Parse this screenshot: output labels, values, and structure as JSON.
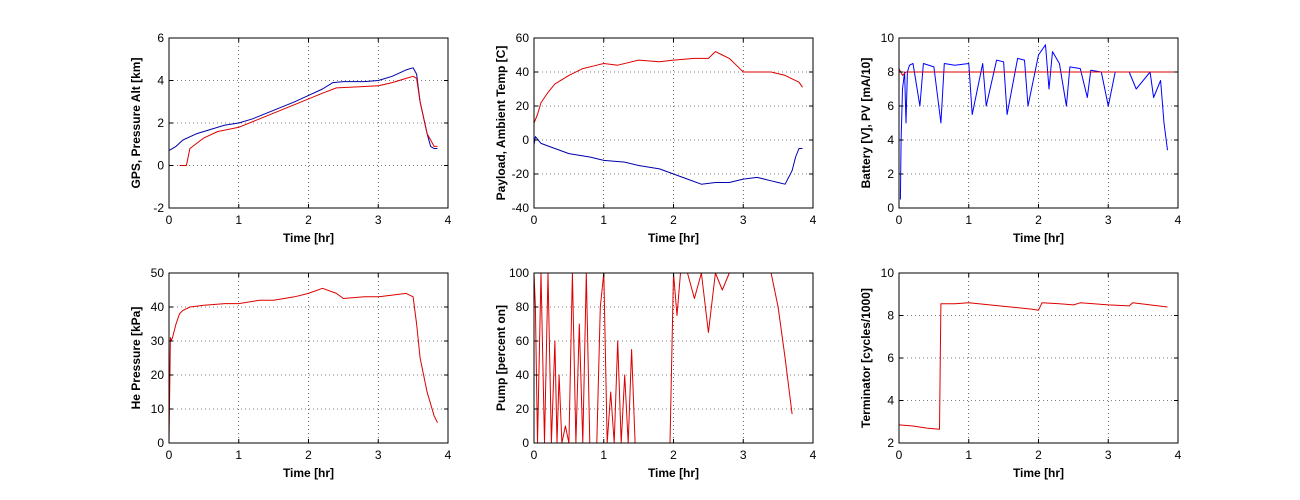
{
  "chart_data": [
    {
      "type": "line",
      "xlabel": "Time [hr]",
      "ylabel": "GPS, Pressure Alt [km]",
      "xlim": [
        0,
        4
      ],
      "ylim": [
        -2,
        6
      ],
      "xticks": [
        0,
        1,
        2,
        3,
        4
      ],
      "yticks": [
        -2,
        0,
        2,
        4,
        6
      ],
      "grid": true,
      "series": [
        {
          "color": "#0000aa",
          "x": [
            0,
            0.1,
            0.2,
            0.4,
            0.6,
            0.8,
            1.0,
            1.2,
            1.5,
            1.8,
            2.0,
            2.2,
            2.35,
            2.5,
            2.8,
            3.0,
            3.2,
            3.4,
            3.5,
            3.55,
            3.6,
            3.7,
            3.75,
            3.8,
            3.85
          ],
          "y": [
            0.7,
            0.9,
            1.2,
            1.5,
            1.7,
            1.9,
            2.0,
            2.2,
            2.6,
            3.0,
            3.3,
            3.6,
            3.9,
            3.95,
            3.95,
            4.0,
            4.2,
            4.5,
            4.6,
            4.3,
            3.0,
            1.5,
            0.9,
            0.8,
            0.8
          ]
        },
        {
          "color": "#dd0000",
          "x": [
            0.15,
            0.25,
            0.3,
            0.5,
            0.7,
            1.0,
            1.3,
            1.6,
            1.9,
            2.2,
            2.4,
            2.7,
            3.0,
            3.2,
            3.4,
            3.5,
            3.55,
            3.6,
            3.7,
            3.8,
            3.85
          ],
          "y": [
            0,
            0,
            0.8,
            1.3,
            1.6,
            1.8,
            2.2,
            2.6,
            3.0,
            3.4,
            3.65,
            3.7,
            3.75,
            3.9,
            4.1,
            4.2,
            4.1,
            3.0,
            1.5,
            0.9,
            0.9
          ]
        }
      ]
    },
    {
      "type": "line",
      "xlabel": "Time [hr]",
      "ylabel": "Payload, Ambient Temp [C]",
      "xlim": [
        0,
        4
      ],
      "ylim": [
        -40,
        60
      ],
      "xticks": [
        0,
        1,
        2,
        3,
        4
      ],
      "yticks": [
        -40,
        -20,
        0,
        20,
        40,
        60
      ],
      "grid": true,
      "series": [
        {
          "color": "#dd0000",
          "x": [
            0,
            0.05,
            0.1,
            0.2,
            0.3,
            0.5,
            0.7,
            0.9,
            1.0,
            1.2,
            1.5,
            1.8,
            2.0,
            2.3,
            2.5,
            2.6,
            2.7,
            2.8,
            2.9,
            3.0,
            3.2,
            3.4,
            3.6,
            3.8,
            3.85
          ],
          "y": [
            10,
            15,
            22,
            28,
            33,
            38,
            42,
            44,
            45,
            44,
            47,
            46,
            47,
            48,
            48,
            52,
            50,
            48,
            44,
            40,
            40,
            40,
            38,
            34,
            31
          ]
        },
        {
          "color": "#0000aa",
          "x": [
            0,
            0.02,
            0.1,
            0.3,
            0.5,
            0.8,
            1.0,
            1.3,
            1.5,
            1.8,
            2.0,
            2.2,
            2.4,
            2.6,
            2.8,
            3.0,
            3.2,
            3.4,
            3.5,
            3.6,
            3.7,
            3.75,
            3.8,
            3.85
          ],
          "y": [
            -3,
            2,
            -2,
            -5,
            -8,
            -10,
            -12,
            -13,
            -15,
            -17,
            -20,
            -23,
            -26,
            -25,
            -25,
            -23,
            -22,
            -24,
            -25,
            -26,
            -18,
            -10,
            -5,
            -5
          ]
        }
      ]
    },
    {
      "type": "line",
      "xlabel": "Time [hr]",
      "ylabel": "Battery [V], PV [mA/10]",
      "xlim": [
        0,
        4
      ],
      "ylim": [
        0,
        10
      ],
      "xticks": [
        0,
        1,
        2,
        3,
        4
      ],
      "yticks": [
        0,
        2,
        4,
        6,
        8,
        10
      ],
      "grid": true,
      "series": [
        {
          "color": "#0000ff",
          "x": [
            0.02,
            0.03,
            0.05,
            0.08,
            0.1,
            0.12,
            0.15,
            0.2,
            0.3,
            0.35,
            0.5,
            0.6,
            0.65,
            0.8,
            1.0,
            1.05,
            1.2,
            1.25,
            1.4,
            1.5,
            1.55,
            1.7,
            1.8,
            1.85,
            2.0,
            2.1,
            2.15,
            2.2,
            2.3,
            2.4,
            2.45,
            2.6,
            2.7,
            2.75,
            2.9,
            3.0,
            3.1,
            3.3,
            3.4,
            3.6,
            3.65,
            3.75,
            3.8,
            3.85
          ],
          "y": [
            0.5,
            4,
            7,
            8,
            5,
            8,
            8.4,
            8.5,
            6,
            8.5,
            8.3,
            5,
            8.5,
            8.4,
            8.5,
            5.5,
            8.5,
            6,
            8.7,
            8.6,
            5.5,
            8.8,
            8.7,
            6,
            9,
            9.6,
            7,
            9.2,
            8.5,
            6,
            8.3,
            8.2,
            6.5,
            8.1,
            8,
            6,
            8,
            8,
            7,
            8,
            6.5,
            7.5,
            5,
            3.4
          ]
        },
        {
          "color": "#dd0000",
          "x": [
            0,
            0.05,
            0.1,
            0.5,
            1.0,
            2.0,
            3.0,
            3.5,
            3.8,
            4.0
          ],
          "y": [
            8.2,
            7.8,
            8.0,
            8.0,
            8.0,
            8.0,
            8.0,
            8.0,
            8.0,
            8.0
          ]
        }
      ]
    },
    {
      "type": "line",
      "xlabel": "Time [hr]",
      "ylabel": "He Pressure [kPa]",
      "xlim": [
        0,
        4
      ],
      "ylim": [
        0,
        50
      ],
      "xticks": [
        0,
        1,
        2,
        3,
        4
      ],
      "yticks": [
        0,
        10,
        20,
        30,
        40,
        50
      ],
      "grid": true,
      "series": [
        {
          "color": "#dd0000",
          "x": [
            0,
            0.02,
            0.03,
            0.05,
            0.1,
            0.15,
            0.2,
            0.3,
            0.5,
            0.8,
            1.0,
            1.3,
            1.5,
            1.8,
            2.0,
            2.2,
            2.4,
            2.5,
            2.8,
            3.0,
            3.2,
            3.4,
            3.5,
            3.55,
            3.6,
            3.7,
            3.8,
            3.85
          ],
          "y": [
            0,
            31,
            30,
            31,
            35,
            38,
            39,
            40,
            40.5,
            41,
            41,
            42,
            42,
            43,
            44,
            45.5,
            44,
            42.5,
            43,
            43,
            43.5,
            44,
            43,
            35,
            25,
            15,
            8,
            6
          ]
        }
      ]
    },
    {
      "type": "line",
      "xlabel": "Time [hr]",
      "ylabel": "Pump [percent on]",
      "xlim": [
        0,
        4
      ],
      "ylim": [
        0,
        100
      ],
      "xticks": [
        0,
        1,
        2,
        3,
        4
      ],
      "yticks": [
        0,
        20,
        40,
        60,
        80,
        100
      ],
      "grid": true,
      "series": [
        {
          "color": "#dd0000",
          "x": [
            0,
            0.02,
            0.05,
            0.1,
            0.15,
            0.2,
            0.25,
            0.3,
            0.33,
            0.36,
            0.4,
            0.45,
            0.5,
            0.55,
            0.6,
            0.65,
            0.7,
            0.75,
            0.8,
            0.9,
            0.95,
            1.0,
            1.05,
            1.1,
            1.15,
            1.2,
            1.25,
            1.3,
            1.35,
            1.4,
            1.45,
            1.5,
            1.6,
            1.7,
            1.8,
            1.9,
            1.95,
            2.0,
            2.05,
            2.1,
            2.2,
            2.3,
            2.4,
            2.5,
            2.6,
            2.7,
            2.8,
            2.9,
            3.0,
            3.2,
            3.4,
            3.5,
            3.6,
            3.7
          ],
          "y": [
            100,
            80,
            0,
            100,
            0,
            100,
            0,
            60,
            0,
            40,
            0,
            10,
            0,
            100,
            0,
            70,
            0,
            100,
            0,
            0,
            80,
            100,
            0,
            30,
            0,
            60,
            0,
            40,
            0,
            55,
            0,
            0,
            0,
            0,
            0,
            0,
            0,
            100,
            75,
            100,
            100,
            85,
            100,
            65,
            100,
            90,
            100,
            100,
            100,
            100,
            100,
            80,
            50,
            17
          ]
        }
      ]
    },
    {
      "type": "line",
      "xlabel": "Time [hr]",
      "ylabel": "Terminator [cycles/1000]",
      "xlim": [
        0,
        4
      ],
      "ylim": [
        2,
        10
      ],
      "xticks": [
        0,
        1,
        2,
        3,
        4
      ],
      "yticks": [
        2,
        4,
        6,
        8,
        10
      ],
      "grid": true,
      "series": [
        {
          "color": "#dd0000",
          "x": [
            0,
            0.2,
            0.4,
            0.58,
            0.6,
            0.8,
            1.0,
            1.3,
            1.6,
            1.9,
            2.0,
            2.05,
            2.3,
            2.5,
            2.6,
            3.0,
            3.3,
            3.35,
            3.6,
            3.85
          ],
          "y": [
            2.85,
            2.8,
            2.7,
            2.65,
            8.55,
            8.55,
            8.6,
            8.5,
            8.4,
            8.3,
            8.25,
            8.6,
            8.55,
            8.5,
            8.6,
            8.5,
            8.45,
            8.6,
            8.5,
            8.4
          ]
        }
      ]
    }
  ]
}
